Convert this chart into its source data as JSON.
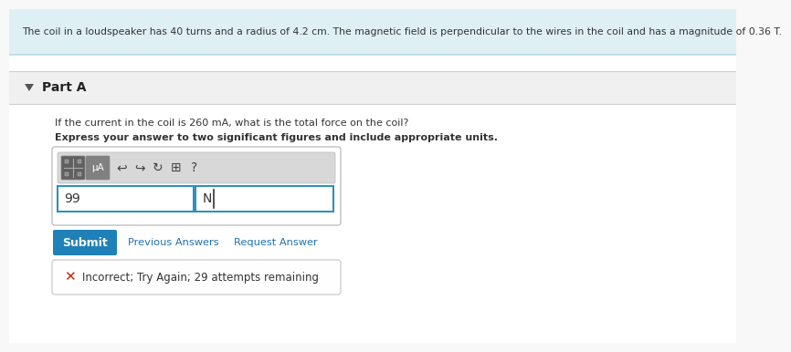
{
  "bg_color": "#f8f8f8",
  "header_bg": "#dff0f5",
  "header_border_top": "#b8dce8",
  "header_border_bot": "#b8dce8",
  "header_text": "The coil in a loudspeaker has 40 turns and a radius of 4.2 cm. The magnetic field is perpendicular to the wires in the coil and has a magnitude of 0.36 T.",
  "part_a_label": "Part A",
  "question_line1": "If the current in the coil is 260 mA, what is the total force on the coil?",
  "question_line2": "Express your answer to two significant figures and include appropriate units.",
  "answer_value": "99",
  "answer_unit": "N",
  "submit_label": "Submit",
  "submit_bg": "#2080b8",
  "submit_text_color": "#ffffff",
  "prev_answers_label": "Previous Answers",
  "req_answer_label": "Request Answer",
  "link_color": "#2070b0",
  "error_text": "Incorrect; Try Again; 29 attempts remaining",
  "error_color": "#cc2200",
  "divider_color": "#d0d0d0",
  "section_bg": "#f0f0f0",
  "content_bg": "#ffffff",
  "toolbar_bg": "#d8d8d8",
  "input_border": "#3090c0",
  "mu_a_label": "μA",
  "btn1_bg": "#606060",
  "btn2_bg": "#808080",
  "icon_color": "#444444"
}
